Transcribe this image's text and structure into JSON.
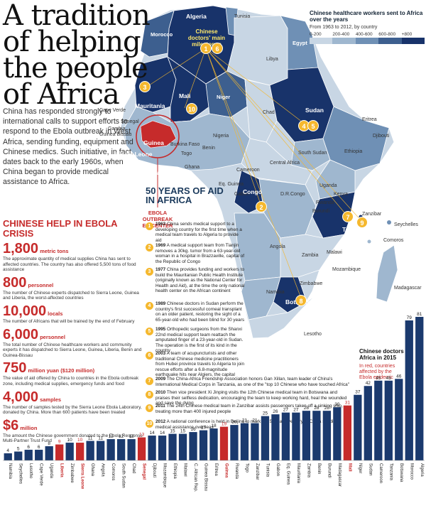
{
  "title": "A tradition of helping the people of Africa",
  "intro": "China has responded strongly to international calls to support efforts to respond to the Ebola outbreak in West Africa, sending funding, equipment and Chinese medics. Such initiative, in fact, dates back to the early 1960s, when China began to provide medical assistance to Africa.",
  "legend": {
    "title": "Chinese healthcare workers sent to Africa over the years",
    "subtitle": "From 1963 to 2012, by country",
    "ranges": [
      "0-200",
      "200-400",
      "400-600",
      "600-800",
      "+800"
    ],
    "colors": [
      "#c8d6e4",
      "#9fb7cf",
      "#6f90b5",
      "#3d5f8f",
      "#18336a"
    ]
  },
  "map": {
    "milestones_label": "Chinese doctors' main milestones",
    "ebola_label": "EBOLA OUTBREAK EPICENTER",
    "countries": [
      {
        "name": "Algeria",
        "style": "bw"
      },
      {
        "name": "Tunisia",
        "style": ""
      },
      {
        "name": "Morocco",
        "style": "w"
      },
      {
        "name": "Libya",
        "style": ""
      },
      {
        "name": "Egypt",
        "style": "w"
      },
      {
        "name": "Mauritania",
        "style": "bw"
      },
      {
        "name": "Mali",
        "style": "bw"
      },
      {
        "name": "Niger",
        "style": "w"
      },
      {
        "name": "Chad",
        "style": ""
      },
      {
        "name": "Sudan",
        "style": "bw"
      },
      {
        "name": "Eritrea",
        "style": ""
      },
      {
        "name": "Djibouti",
        "style": ""
      },
      {
        "name": "Cape Verde",
        "style": ""
      },
      {
        "name": "Senegal",
        "style": ""
      },
      {
        "name": "Gambia",
        "style": ""
      },
      {
        "name": "Guinea Bissau",
        "style": ""
      },
      {
        "name": "Guinea",
        "style": "bw"
      },
      {
        "name": "Sierra Leone",
        "style": "bw"
      },
      {
        "name": "Liberia",
        "style": "bw"
      },
      {
        "name": "Burkina Faso",
        "style": ""
      },
      {
        "name": "Nigeria",
        "style": ""
      },
      {
        "name": "Benin",
        "style": ""
      },
      {
        "name": "Togo",
        "style": ""
      },
      {
        "name": "Ghana",
        "style": ""
      },
      {
        "name": "South Sudan",
        "style": ""
      },
      {
        "name": "Ethiopia",
        "style": ""
      },
      {
        "name": "Central Africa",
        "style": ""
      },
      {
        "name": "Cameroon",
        "style": ""
      },
      {
        "name": "Eq. Guinea",
        "style": ""
      },
      {
        "name": "Gabon",
        "style": ""
      },
      {
        "name": "Congo",
        "style": "bw"
      },
      {
        "name": "D.R.Congo",
        "style": ""
      },
      {
        "name": "Uganda",
        "style": ""
      },
      {
        "name": "Kenya",
        "style": ""
      },
      {
        "name": "Rwanda",
        "style": ""
      },
      {
        "name": "Burundi",
        "style": ""
      },
      {
        "name": "Tanzania",
        "style": "bw"
      },
      {
        "name": "Zanzibar",
        "style": ""
      },
      {
        "name": "Seychelles",
        "style": ""
      },
      {
        "name": "Comoros",
        "style": ""
      },
      {
        "name": "Angola",
        "style": ""
      },
      {
        "name": "Zambia",
        "style": ""
      },
      {
        "name": "Malawi",
        "style": ""
      },
      {
        "name": "Mozambique",
        "style": ""
      },
      {
        "name": "Zimbabwe",
        "style": ""
      },
      {
        "name": "Namibia",
        "style": ""
      },
      {
        "name": "Botswana",
        "style": "bw"
      },
      {
        "name": "Madagascar",
        "style": ""
      },
      {
        "name": "Lesotho",
        "style": ""
      }
    ],
    "milestone_markers": [
      "1",
      "6",
      "3",
      "10",
      "4",
      "5",
      "2",
      "7",
      "9",
      "8"
    ]
  },
  "ebola": {
    "heading": "CHINESE HELP IN EBOLA CRISIS",
    "stats": [
      {
        "num": "1,800",
        "unit": "metric tons",
        "desc": "The approximate quantity of medical supplies China has sent to affected countries. The country has also offered 5,500 tons of food assistance"
      },
      {
        "num": "800",
        "unit": "personnel",
        "desc": "The number of Chinese experts dispatched to Sierra Leone, Guinea and Liberia, the worst-affected countries"
      },
      {
        "num": "10,000",
        "unit": "locals",
        "desc": "The number of Africans that will be trained by the end of February"
      },
      {
        "num": "6,000",
        "unit": "personnel",
        "desc": "The total number of Chinese healthcare workers and community experts it has dispatched to Sierra Leone, Guinea, Liberia, Benin and Guinea-Bissau"
      },
      {
        "num": "750",
        "unit": "million yuan ($120 million)",
        "desc": "The value of aid offered by China to countries in the Ebola outbreak zone, including medical supplies, emergency funds and food"
      },
      {
        "num": "4,000",
        "unit": "samples",
        "desc": "The number of samples tested by the Sierra Leone Ebola Laboratory, donated by China. More than 600 patients have been treated"
      },
      {
        "num": "$6",
        "unit": "million",
        "desc": "The amount the Chinese government donated to the Ebola Response Multi-Partner Trust Fund"
      }
    ]
  },
  "aid": {
    "heading": "50 YEARS OF AID IN AFRICA",
    "items": [
      {
        "n": "1",
        "year": "1963",
        "text": "China sends medical support to a developing country for the first time when a medical team travels to Algeria to provide aid"
      },
      {
        "n": "2",
        "year": "1969",
        "text": "A medical support team from Tianjin removes a 30kg. tumor from a 63-year-old woman in a hospital in Brazzaville, capital of the Republic of Congo"
      },
      {
        "n": "3",
        "year": "1977",
        "text": "China provides funding and workers to build the Mauritanian Public Health Institute (originally known as the National Center for Health and Aid), at the time the only national health center on the African continent"
      },
      {
        "n": "4",
        "year": "1989",
        "text": "Chinese doctors in Sudan perform the country's first successful corneal transplant on an older patient, restoring the sight of a 65-year-old who had been blind for 30 years"
      },
      {
        "n": "5",
        "year": "1995",
        "text": "Orthopedic surgeons from the Shanxi 22nd medical support team reattach the amputated finger of a 23-year-old in Sudan. The operation is the first of its kind in the country"
      },
      {
        "n": "6",
        "year": "2003",
        "text": "A team of acupuncturists and other traditional Chinese medicine practitioners from Hubei province travels to Algeria to join rescue efforts after a 6.8-magnitude earthquake hits near Algiers, the capital"
      },
      {
        "n": "7",
        "year": "2009",
        "text": "The China-Africa Friendship Association honors Gan Xillan, team leader of China's International Medical Corps in Tanzania, as one of the \"top 10 Chinese who have touched Africa\""
      },
      {
        "n": "8",
        "year": "2010",
        "text": "Then vice president Xi Jinping visits the 12th Chinese medical team in Botswana and praises their selfless dedication, encouraging the team to keep working hard, heal the wounded and save the dying"
      },
      {
        "n": "9",
        "year": "2011",
        "text": "The 24th Chinese medical team in Zanzibar assists passengers taken off a sinking ship, treating more than 400 injured people"
      },
      {
        "n": "10",
        "year": "2012",
        "text": "A national conference is held in Beijing to mark the 50th anniversary of China sending medical assistance overseas"
      }
    ]
  },
  "doctors": {
    "title": "Chinese doctors in Africa in 2015",
    "subtitle": "In red, countries affected by the Ebola epidemic"
  },
  "chart_data": {
    "type": "bar",
    "title": "Chinese doctors in Africa in 2015",
    "categories": [
      "Namibia",
      "Seychelles",
      "Lesotho",
      "Cape Verde",
      "Uganda",
      "Liberia",
      "Zimbabwe",
      "Sierra Leone",
      "Ghana",
      "Angola",
      "Comoros",
      "South Sudan",
      "Chad",
      "Senegal",
      "Djibouti",
      "Mozambique",
      "Ethiopia",
      "Malawi",
      "C. African Rep.",
      "Guinea Bissau",
      "Eritrea",
      "Guinea",
      "Rwanda",
      "Togo",
      "Zanzibar",
      "Tunisia",
      "Gabon",
      "Eq. Guinea",
      "Mauritania",
      "Zambia",
      "Benin",
      "Burundi",
      "Madagascar",
      "Mali",
      "Niger",
      "Sudan",
      "Cameroon",
      "Tanzania",
      "Botswana",
      "Morocco",
      "Algeria"
    ],
    "values": [
      4,
      5,
      6,
      6,
      8,
      9,
      10,
      10,
      11,
      11,
      12,
      12,
      12,
      13,
      14,
      14,
      15,
      15,
      16,
      17,
      18,
      19,
      20,
      21,
      21,
      25,
      26,
      27,
      27,
      28,
      28,
      28,
      30,
      31,
      37,
      42,
      45,
      45,
      46,
      79,
      81
    ],
    "ebola_affected": [
      "Liberia",
      "Sierra Leone",
      "Senegal",
      "Guinea",
      "Mali"
    ],
    "colors": {
      "default": "#1b3a6e",
      "ebola": "#c62b2b"
    }
  }
}
